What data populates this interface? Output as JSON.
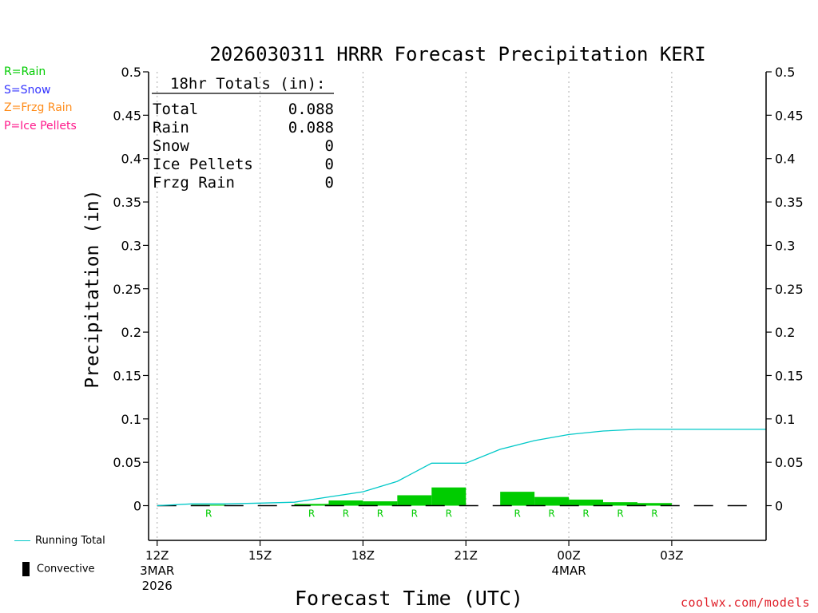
{
  "colors": {
    "rain": "#00cc00",
    "snow": "#3333ff",
    "frzg_rain": "#ff8c1a",
    "ice_pellets": "#ff1a8c",
    "running_total": "#00c8c8",
    "convective": "#000000",
    "credit": "#e0202a"
  },
  "ptype_legend": [
    {
      "label": "R=Rain",
      "color": "#00cc00"
    },
    {
      "label": "S=Snow",
      "color": "#3333ff"
    },
    {
      "label": "Z=Frzg Rain",
      "color": "#ff8c1a"
    },
    {
      "label": "P=Ice Pellets",
      "color": "#ff1a8c"
    }
  ],
  "bottom_legend": {
    "running_total_label": "Running Total",
    "convective_label": "Convective"
  },
  "credit": "coolwx.com/models",
  "totals_box": {
    "header": "18hr Totals (in):",
    "rows": [
      {
        "label": "Total",
        "value": "0.088"
      },
      {
        "label": "Rain",
        "value": "0.088"
      },
      {
        "label": "Snow",
        "value": "0"
      },
      {
        "label": "Ice Pellets",
        "value": "0"
      },
      {
        "label": "Frzg Rain",
        "value": "0"
      }
    ]
  },
  "chart_data": {
    "type": "bar",
    "title": "2026030311 HRRR Forecast Precipitation KERI",
    "xlabel": "Forecast Time (UTC)",
    "ylabel": "Precipitation (in)",
    "ylim": [
      -0.04,
      0.5
    ],
    "yticks": [
      "0",
      "0.05",
      "0.1",
      "0.15",
      "0.2",
      "0.25",
      "0.3",
      "0.35",
      "0.4",
      "0.45",
      "0.5"
    ],
    "xlim_hours": [
      11.75,
      29.75
    ],
    "xticks": [
      {
        "hour": 12,
        "lines": [
          "12Z",
          "3MAR",
          "2026"
        ]
      },
      {
        "hour": 15,
        "lines": [
          "15Z"
        ]
      },
      {
        "hour": 18,
        "lines": [
          "18Z"
        ]
      },
      {
        "hour": 21,
        "lines": [
          "21Z"
        ]
      },
      {
        "hour": 24,
        "lines": [
          "00Z",
          "4MAR"
        ]
      },
      {
        "hour": 27,
        "lines": [
          "03Z"
        ]
      }
    ],
    "hourly_precip": [
      {
        "start": 12,
        "end": 13,
        "value": 0.0,
        "type": ""
      },
      {
        "start": 13,
        "end": 14,
        "value": 0.001,
        "type": "R"
      },
      {
        "start": 14,
        "end": 15,
        "value": 0.0,
        "type": ""
      },
      {
        "start": 15,
        "end": 16,
        "value": 0.0,
        "type": ""
      },
      {
        "start": 16,
        "end": 17,
        "value": 0.002,
        "type": "R"
      },
      {
        "start": 17,
        "end": 18,
        "value": 0.006,
        "type": "R"
      },
      {
        "start": 18,
        "end": 19,
        "value": 0.005,
        "type": "R"
      },
      {
        "start": 19,
        "end": 20,
        "value": 0.012,
        "type": "R"
      },
      {
        "start": 20,
        "end": 21,
        "value": 0.021,
        "type": "R"
      },
      {
        "start": 21,
        "end": 22,
        "value": 0.0,
        "type": ""
      },
      {
        "start": 22,
        "end": 23,
        "value": 0.016,
        "type": "R"
      },
      {
        "start": 23,
        "end": 24,
        "value": 0.01,
        "type": "R"
      },
      {
        "start": 24,
        "end": 25,
        "value": 0.007,
        "type": "R"
      },
      {
        "start": 25,
        "end": 26,
        "value": 0.004,
        "type": "R"
      },
      {
        "start": 26,
        "end": 27,
        "value": 0.003,
        "type": "R"
      },
      {
        "start": 27,
        "end": 28,
        "value": 0.0,
        "type": ""
      },
      {
        "start": 28,
        "end": 29,
        "value": 0.0,
        "type": ""
      }
    ],
    "running_total": {
      "x": [
        12,
        13,
        14,
        15,
        16,
        17,
        18,
        19,
        20,
        21,
        22,
        23,
        24,
        25,
        26,
        27,
        28,
        29,
        29.75
      ],
      "y": [
        0.0,
        0.002,
        0.002,
        0.003,
        0.004,
        0.01,
        0.016,
        0.028,
        0.049,
        0.049,
        0.065,
        0.075,
        0.082,
        0.086,
        0.088,
        0.088,
        0.088,
        0.088,
        0.088
      ]
    },
    "grid": "vertical dotted at major x ticks",
    "legend": "left"
  }
}
